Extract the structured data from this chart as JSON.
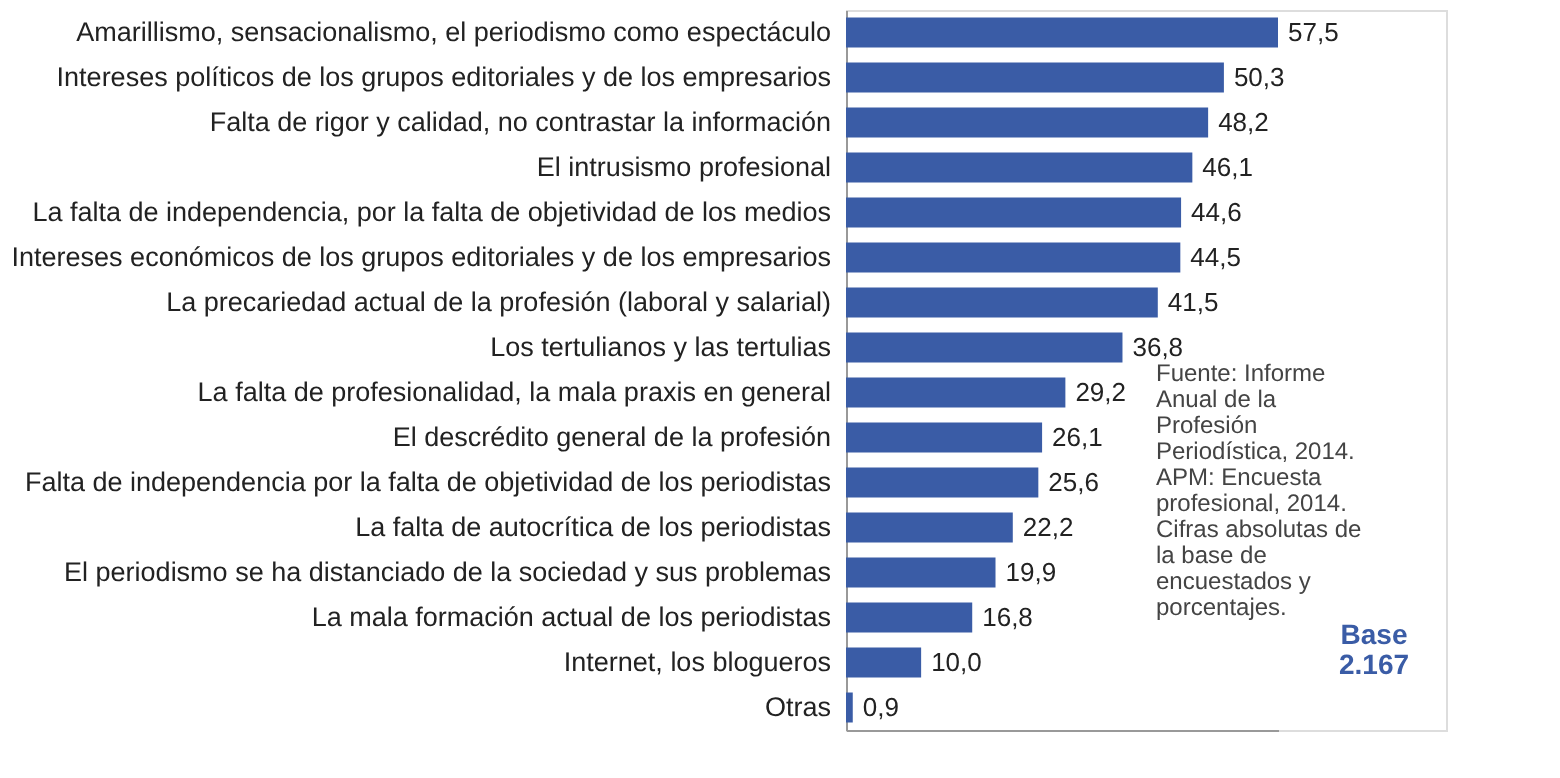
{
  "chart_data": {
    "type": "bar",
    "orientation": "horizontal",
    "categories": [
      "Amarillismo, sensacionalismo, el periodismo como espectáculo",
      "Intereses políticos de los grupos editoriales y de los empresarios",
      "Falta de rigor y calidad, no contrastar la información",
      "El intrusismo profesional",
      "La falta de independencia, por la falta de objetividad de los medios",
      "Intereses económicos de los grupos editoriales y de los empresarios",
      "La precariedad actual de la profesión (laboral y salarial)",
      "Los tertulianos y las tertulias",
      "La falta de profesionalidad, la mala praxis en general",
      "El descrédito general de la profesión",
      "Falta de independencia por la falta de objetividad de los periodistas",
      "La falta de autocrítica de los periodistas",
      "El periodismo se ha distanciado de la sociedad y sus problemas",
      "La mala formación actual de los periodistas",
      "Internet, los blogueros",
      "Otras"
    ],
    "values": [
      57.5,
      50.3,
      48.2,
      46.1,
      44.6,
      44.5,
      41.5,
      36.8,
      29.2,
      26.1,
      25.6,
      22.2,
      19.9,
      16.8,
      10.0,
      0.9
    ],
    "color": "#3a5ca6",
    "value_labels": [
      "57,5",
      "50,3",
      "48,2",
      "46,1",
      "44,6",
      "44,5",
      "41,5",
      "36,8",
      "29,2",
      "26,1",
      "25,6",
      "22,2",
      "19,9",
      "16,8",
      "10,0",
      "0,9"
    ],
    "tick_labels": "y",
    "grid": false,
    "annotations": [
      "Fuente: Informe Anual de la Profesión Periodística, 2014.",
      "APM: Encuesta profesional, 2014.",
      "Cifras absolutas de la base de encuestados y porcentajes.",
      "Base 2.167"
    ]
  }
}
